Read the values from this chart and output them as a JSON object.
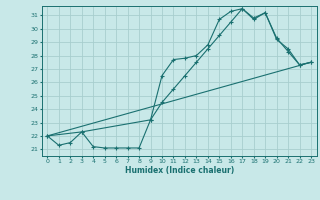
{
  "title": "",
  "xlabel": "Humidex (Indice chaleur)",
  "bg_color": "#c8e8e8",
  "grid_color": "#a8cece",
  "line_color": "#1a7070",
  "xlim": [
    -0.5,
    23.5
  ],
  "ylim": [
    20.5,
    31.7
  ],
  "xticks": [
    0,
    1,
    2,
    3,
    4,
    5,
    6,
    7,
    8,
    9,
    10,
    11,
    12,
    13,
    14,
    15,
    16,
    17,
    18,
    19,
    20,
    21,
    22,
    23
  ],
  "yticks": [
    21,
    22,
    23,
    24,
    25,
    26,
    27,
    28,
    29,
    30,
    31
  ],
  "line1_x": [
    0,
    1,
    2,
    3,
    4,
    5,
    6,
    7,
    8,
    9,
    10,
    11,
    12,
    13,
    14,
    15,
    16,
    17,
    18,
    19,
    20,
    21,
    22,
    23
  ],
  "line1_y": [
    22.0,
    21.3,
    21.5,
    22.3,
    21.2,
    21.1,
    21.1,
    21.1,
    21.1,
    23.2,
    26.5,
    27.7,
    27.8,
    28.0,
    28.8,
    30.7,
    31.3,
    31.5,
    30.8,
    31.2,
    29.2,
    28.5,
    27.3,
    27.5
  ],
  "line2_x": [
    0,
    3,
    9,
    10,
    11,
    12,
    13,
    14,
    15,
    16,
    17,
    18,
    19,
    20,
    21,
    22,
    23
  ],
  "line2_y": [
    22.0,
    22.3,
    23.2,
    24.5,
    25.5,
    26.5,
    27.5,
    28.5,
    29.5,
    30.5,
    31.5,
    30.7,
    31.2,
    29.3,
    28.3,
    27.3,
    27.5
  ],
  "line3_x": [
    0,
    23
  ],
  "line3_y": [
    22.0,
    27.5
  ]
}
